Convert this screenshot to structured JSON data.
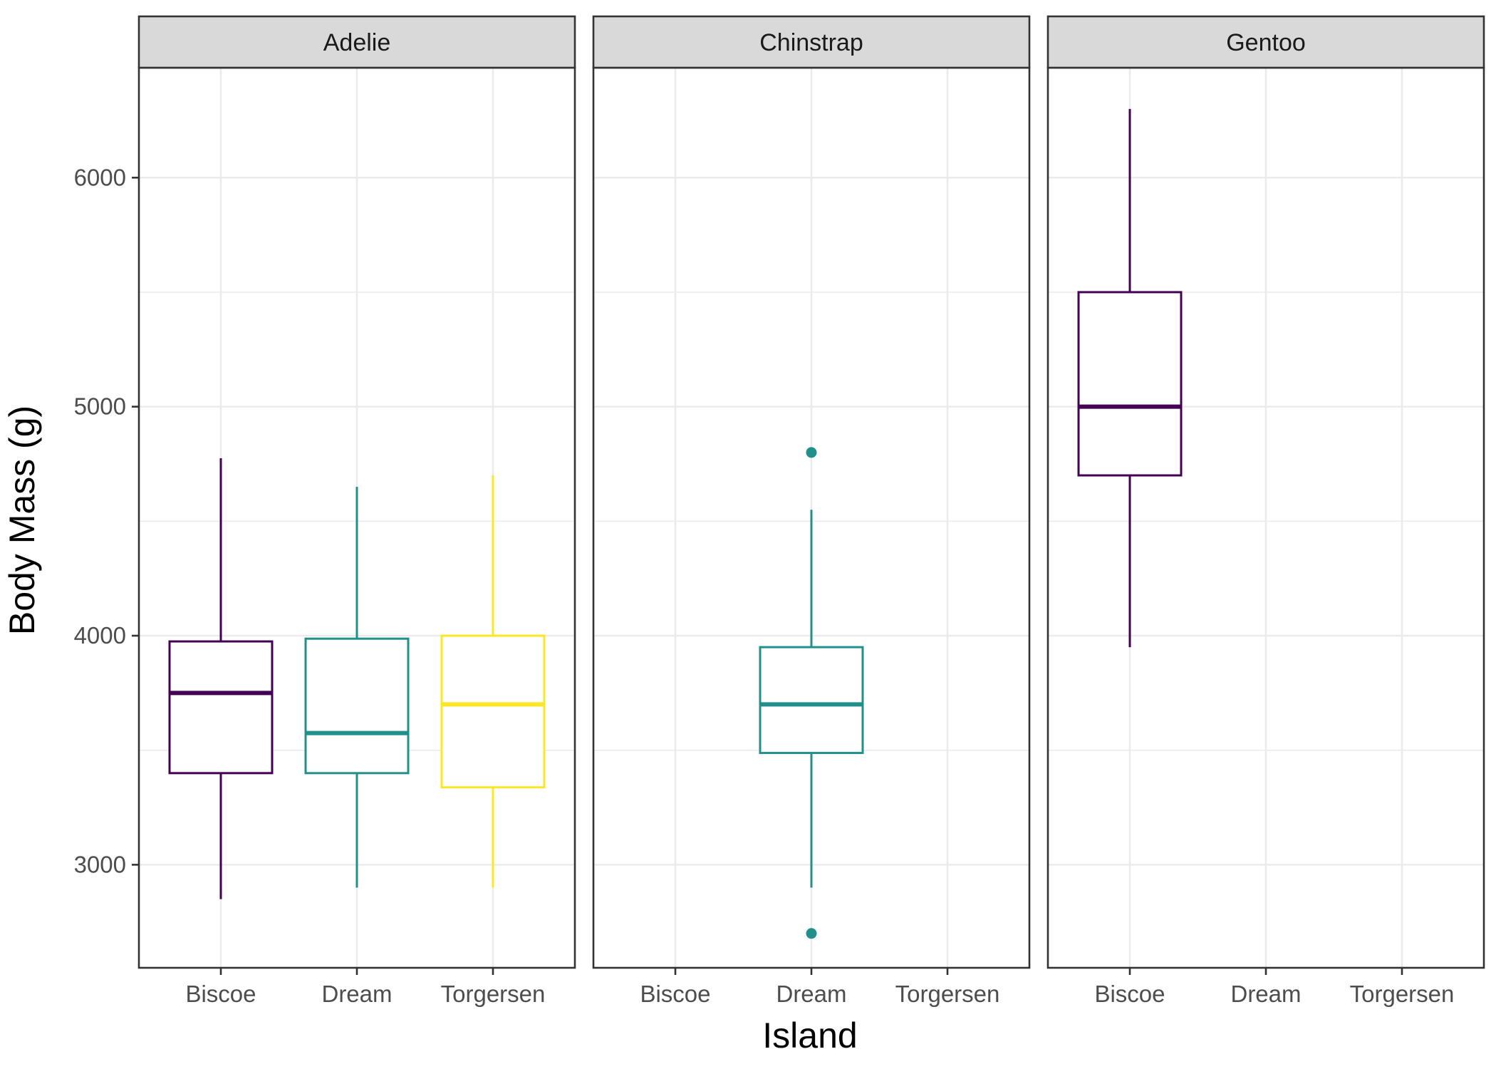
{
  "chart_data": {
    "type": "boxplot",
    "facet_by": "species",
    "xlabel": "Island",
    "ylabel": "Body Mass (g)",
    "ylim": [
      2550,
      6480
    ],
    "y_ticks": [
      3000,
      4000,
      5000,
      6000
    ],
    "categories": [
      "Biscoe",
      "Dream",
      "Torgersen"
    ],
    "grid": true,
    "colors": {
      "Biscoe": "#440154",
      "Dream": "#21908C",
      "Torgersen": "#FDE725",
      "grid": "#EBEBEB",
      "strip_fill": "#D9D9D9",
      "border": "#333333"
    },
    "facets": [
      {
        "label": "Adelie",
        "boxes": [
          {
            "x": "Biscoe",
            "low": 2850,
            "q1": 3400,
            "median": 3750,
            "q3": 3975,
            "high": 4775,
            "outliers": []
          },
          {
            "x": "Dream",
            "low": 2900,
            "q1": 3400,
            "median": 3575,
            "q3": 3987,
            "high": 4650,
            "outliers": []
          },
          {
            "x": "Torgersen",
            "low": 2900,
            "q1": 3338,
            "median": 3700,
            "q3": 4000,
            "high": 4700,
            "outliers": []
          }
        ]
      },
      {
        "label": "Chinstrap",
        "boxes": [
          {
            "x": "Dream",
            "low": 2900,
            "q1": 3488,
            "median": 3700,
            "q3": 3950,
            "high": 4550,
            "outliers": [
              4800,
              2700
            ]
          }
        ]
      },
      {
        "label": "Gentoo",
        "boxes": [
          {
            "x": "Biscoe",
            "low": 3950,
            "q1": 4700,
            "median": 5000,
            "q3": 5500,
            "high": 6300,
            "outliers": []
          }
        ]
      }
    ]
  }
}
